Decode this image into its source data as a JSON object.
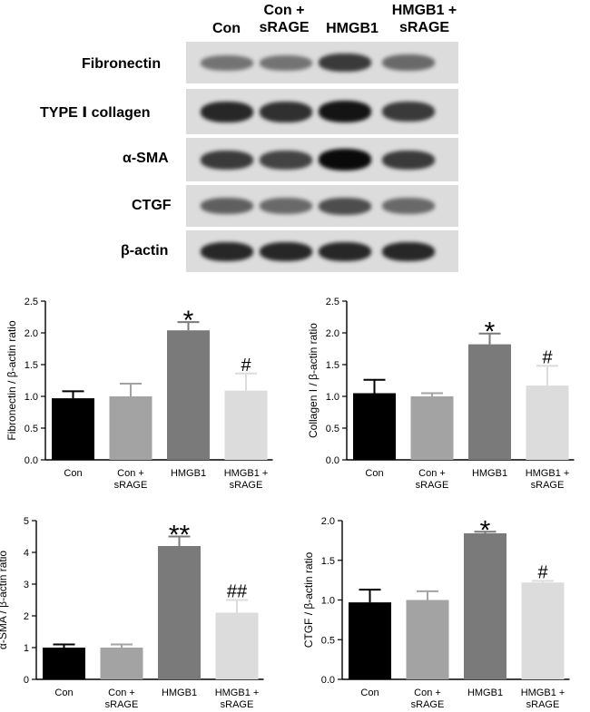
{
  "blot": {
    "lane_headers": [
      "Con",
      "Con +\nsRAGE",
      "HMGB1",
      "HMGB1 +\nsRAGE"
    ],
    "rows": [
      {
        "label": "Fibronectin",
        "band_intensity": [
          0.45,
          0.45,
          0.75,
          0.5
        ]
      },
      {
        "label": "TYPE Ⅰ collagen",
        "band_intensity": [
          0.85,
          0.8,
          0.95,
          0.75
        ]
      },
      {
        "label": "α-SMA",
        "band_intensity": [
          0.75,
          0.7,
          1.0,
          0.75
        ]
      },
      {
        "label": "CTGF",
        "band_intensity": [
          0.55,
          0.5,
          0.65,
          0.5
        ]
      },
      {
        "label": "β-actin",
        "band_intensity": [
          0.85,
          0.85,
          0.85,
          0.85
        ]
      }
    ]
  },
  "chart_data": [
    {
      "type": "bar",
      "categories": [
        "Con",
        "Con +\nsRAGE",
        "HMGB1",
        "HMGB1 +\nsRAGE"
      ],
      "values": [
        0.97,
        1.0,
        2.04,
        1.09
      ],
      "errors": [
        0.11,
        0.2,
        0.13,
        0.27
      ],
      "annotations": [
        "",
        "",
        "*",
        "#"
      ],
      "colors": [
        "#000000",
        "#a3a3a3",
        "#7a7a7a",
        "#dcdcdc"
      ],
      "ylabel": "Fibronectin / β-actin ratio",
      "ylim": [
        0,
        2.5
      ],
      "yticks": [
        "0.0",
        "0.5",
        "1.0",
        "1.5",
        "2.0",
        "2.5"
      ],
      "tick_values": [
        0,
        0.5,
        1.0,
        1.5,
        2.0,
        2.5
      ]
    },
    {
      "type": "bar",
      "categories": [
        "Con",
        "Con +\nsRAGE",
        "HMGB1",
        "HMGB1 +\nsRAGE"
      ],
      "values": [
        1.05,
        1.0,
        1.82,
        1.17
      ],
      "errors": [
        0.21,
        0.05,
        0.17,
        0.31
      ],
      "annotations": [
        "",
        "",
        "*",
        "#"
      ],
      "colors": [
        "#000000",
        "#a3a3a3",
        "#7a7a7a",
        "#dcdcdc"
      ],
      "ylabel": "Collagen I / β-actin ratio",
      "ylim": [
        0,
        2.5
      ],
      "yticks": [
        "0.0",
        "0.5",
        "1.0",
        "1.5",
        "2.0",
        "2.5"
      ],
      "tick_values": [
        0,
        0.5,
        1.0,
        1.5,
        2.0,
        2.5
      ]
    },
    {
      "type": "bar",
      "categories": [
        "Con",
        "Con +\nsRAGE",
        "HMGB1",
        "HMGB1 +\nsRAGE"
      ],
      "values": [
        1.0,
        1.0,
        4.2,
        2.1
      ],
      "errors": [
        0.1,
        0.1,
        0.3,
        0.4
      ],
      "annotations": [
        "",
        "",
        "**",
        "##"
      ],
      "colors": [
        "#000000",
        "#a3a3a3",
        "#7a7a7a",
        "#dcdcdc"
      ],
      "ylabel": "α-SMA / β-actin ratio",
      "ylim": [
        0,
        5
      ],
      "yticks": [
        "0",
        "1",
        "2",
        "3",
        "4",
        "5"
      ],
      "tick_values": [
        0,
        1,
        2,
        3,
        4,
        5
      ]
    },
    {
      "type": "bar",
      "categories": [
        "Con",
        "Con +\nsRAGE",
        "HMGB1",
        "HMGB1 +\nsRAGE"
      ],
      "values": [
        0.97,
        1.0,
        1.84,
        1.22
      ],
      "errors": [
        0.16,
        0.11,
        0.02,
        0.02
      ],
      "annotations": [
        "",
        "",
        "*",
        "#"
      ],
      "colors": [
        "#000000",
        "#a3a3a3",
        "#7a7a7a",
        "#dcdcdc"
      ],
      "ylabel": "CTGF / β-actin ratio",
      "ylim": [
        0,
        2.0
      ],
      "yticks": [
        "0.0",
        "0.5",
        "1.0",
        "1.5",
        "2.0"
      ],
      "tick_values": [
        0,
        0.5,
        1.0,
        1.5,
        2.0
      ]
    }
  ]
}
